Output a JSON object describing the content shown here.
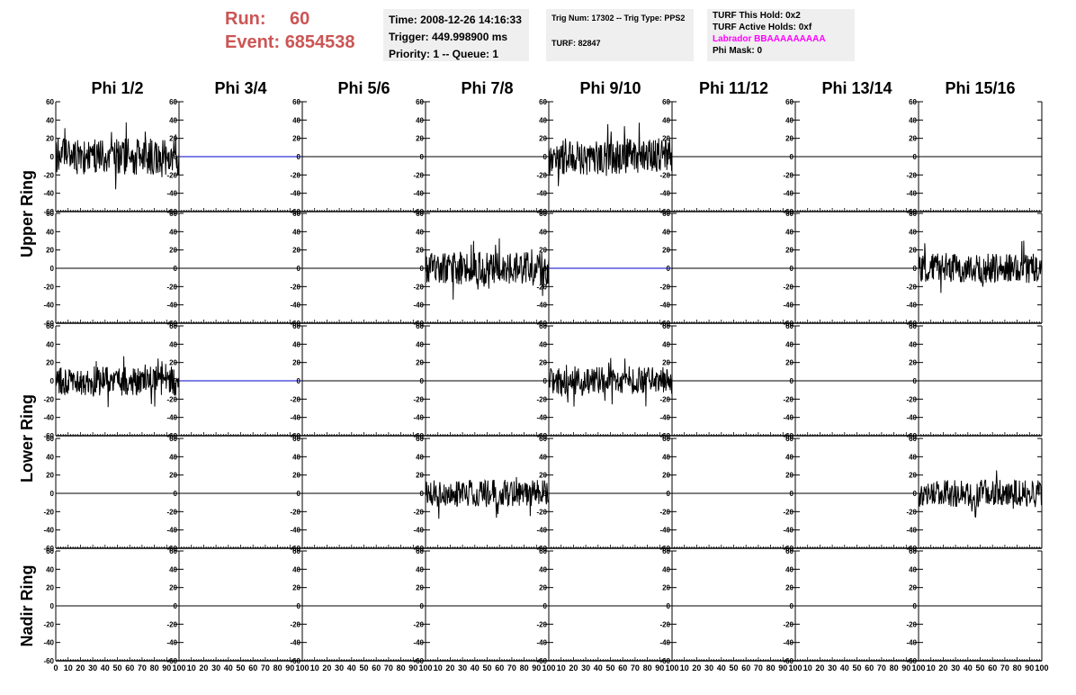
{
  "header": {
    "run_label": "Run:",
    "run_value": "60",
    "event_label": "Event:",
    "event_value": "6854538",
    "time": "Time: 2008-12-26 14:16:33",
    "trigger": "Trigger: 449.998900 ms",
    "priority": "Priority: 1 -- Queue: 1",
    "trig_num": "Trig Num: 17302 -- Trig Type: PPS2",
    "turf": "TURF: 82847",
    "turf_this_hold": "TURF This Hold: 0x2",
    "turf_active_holds": "TURF Active Holds: 0xf",
    "labrador": "Labrador BBAAAAAAAAA",
    "phi_mask": "Phi Mask: 0"
  },
  "colors": {
    "header_red": "#cc5555",
    "labrador_magenta": "#ff00ff",
    "info_bg": "#efefef",
    "trace": "#000000",
    "flat_trace_blue": "#0000cc"
  },
  "chart_data": {
    "type": "line",
    "columns": [
      "Phi 1/2",
      "Phi 3/4",
      "Phi 5/6",
      "Phi 7/8",
      "Phi 9/10",
      "Phi 11/12",
      "Phi 13/14",
      "Phi 15/16"
    ],
    "rings": [
      "Upper Ring",
      "Lower Ring",
      "Nadir Ring"
    ],
    "rows": 5,
    "xlim": [
      0,
      100
    ],
    "ylim": [
      -60,
      60
    ],
    "x_ticks": [
      0,
      10,
      20,
      30,
      40,
      50,
      60,
      70,
      80,
      90,
      100
    ],
    "y_ticks": [
      -60,
      -40,
      -20,
      0,
      20,
      40,
      60
    ],
    "active_panels": [
      {
        "row": 0,
        "col": 0,
        "amplitude": 20,
        "seed": 11
      },
      {
        "row": 0,
        "col": 4,
        "amplitude": 20,
        "seed": 23
      },
      {
        "row": 1,
        "col": 3,
        "amplitude": 18,
        "seed": 37
      },
      {
        "row": 1,
        "col": 7,
        "amplitude": 16,
        "seed": 41
      },
      {
        "row": 2,
        "col": 0,
        "amplitude": 16,
        "seed": 53
      },
      {
        "row": 2,
        "col": 4,
        "amplitude": 15,
        "seed": 67
      },
      {
        "row": 3,
        "col": 3,
        "amplitude": 15,
        "seed": 71
      },
      {
        "row": 3,
        "col": 7,
        "amplitude": 15,
        "seed": 83
      }
    ],
    "blue_flat_panels": [
      {
        "row": 0,
        "col": 1
      },
      {
        "row": 2,
        "col": 1
      },
      {
        "row": 1,
        "col": 4
      }
    ]
  }
}
